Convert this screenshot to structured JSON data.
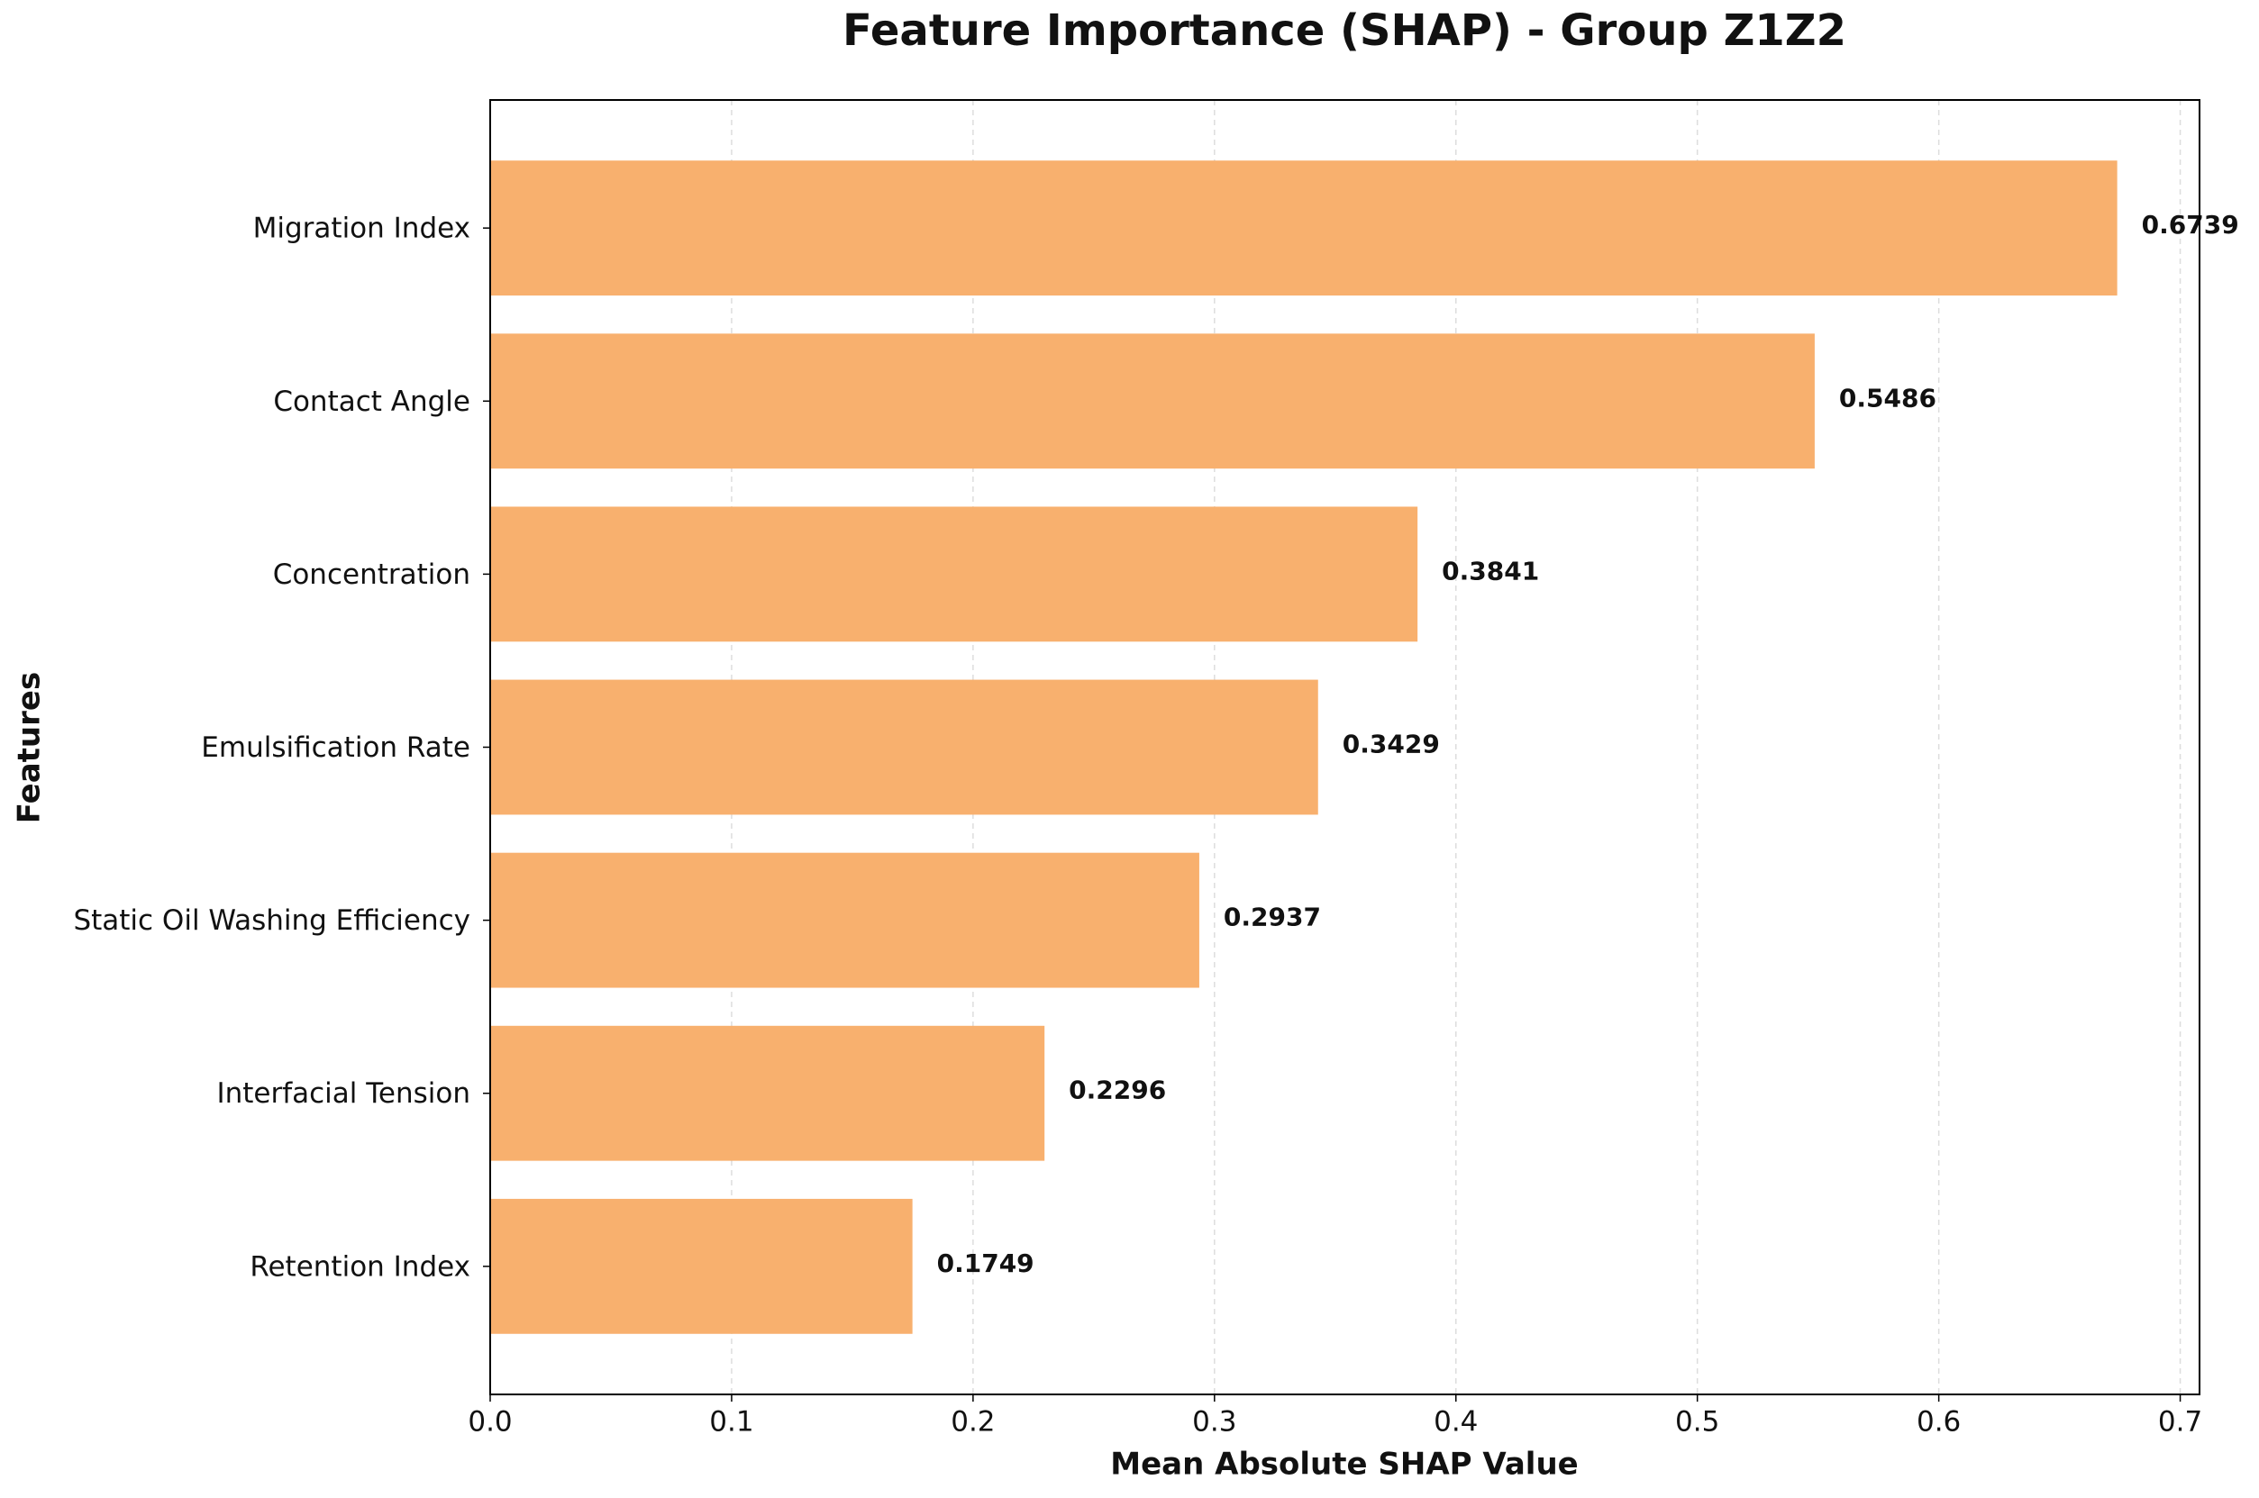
{
  "chart_data": {
    "type": "barh",
    "title": "Feature Importance (SHAP) - Group Z1Z2",
    "x_label": "Mean Absolute SHAP Value",
    "y_label": "Features",
    "categories": [
      "Migration Index",
      "Contact Angle",
      "Concentration",
      "Emulsification Rate",
      "Static Oil Washing Efficiency",
      "Interfacial Tension",
      "Retention Index"
    ],
    "values": [
      0.6739,
      0.5486,
      0.3841,
      0.3429,
      0.2937,
      0.2296,
      0.1749
    ],
    "color": "#f8b06e",
    "xlim": [
      0,
      0.708
    ],
    "xticks": [
      {
        "value": 0,
        "label": "0.0"
      },
      0.1,
      0.2,
      0.3,
      0.4,
      0.5,
      0.6,
      0.7
    ],
    "grid": true
  }
}
